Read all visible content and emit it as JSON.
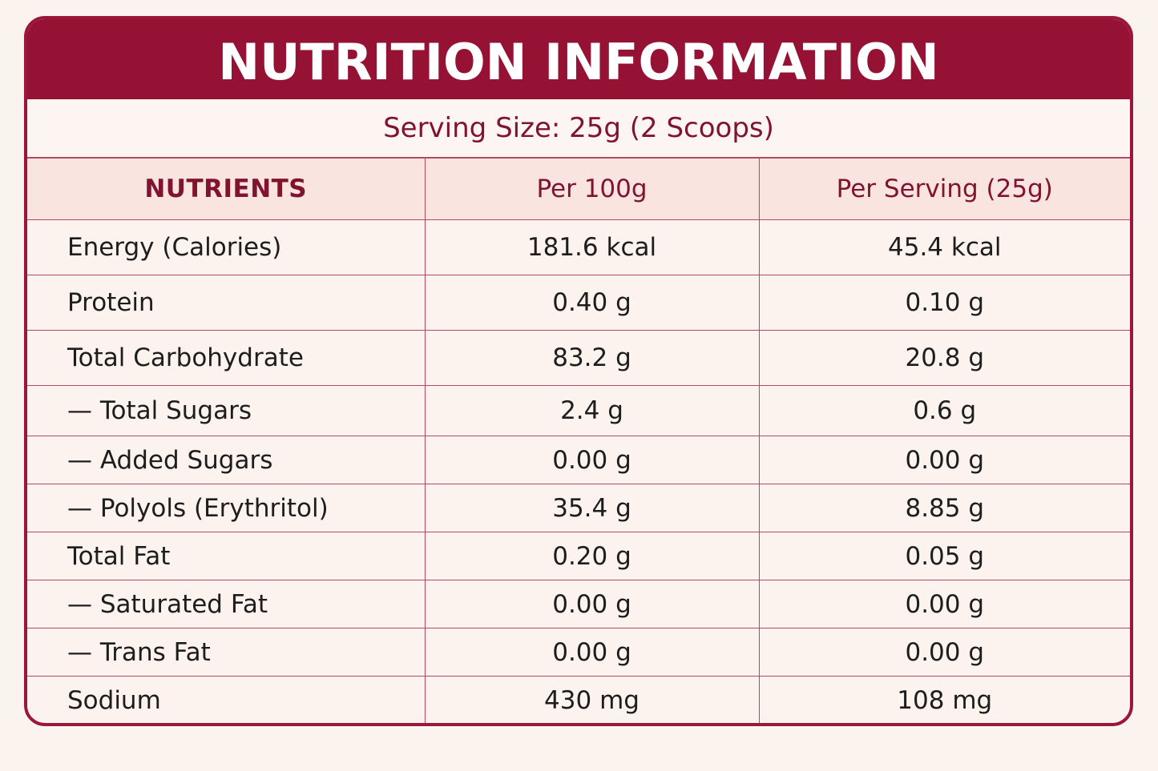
{
  "title": "NUTRITION INFORMATION",
  "serving_size": "Serving Size: 25g (2 Scoops)",
  "columns": [
    "NUTRIENTS",
    "Per 100g",
    "Per Serving (25g)"
  ],
  "rows": [
    {
      "nutrient": "Energy (Calories)",
      "per_100g": "181.6 kcal",
      "per_serving": "45.4 kcal"
    },
    {
      "nutrient": "Protein",
      "per_100g": "0.40 g",
      "per_serving": "0.10 g"
    },
    {
      "nutrient": "Total Carbohydrate",
      "per_100g": "83.2 g",
      "per_serving": "20.8 g"
    },
    {
      "nutrient": "— Total Sugars",
      "per_100g": "2.4 g",
      "per_serving": "0.6 g"
    },
    {
      "nutrient": "— Added Sugars",
      "per_100g": "0.00 g",
      "per_serving": "0.00 g"
    },
    {
      "nutrient": "— Polyols (Erythritol)",
      "per_100g": "35.4 g",
      "per_serving": "8.85 g"
    },
    {
      "nutrient": "Total Fat",
      "per_100g": "0.20 g",
      "per_serving": "0.05 g"
    },
    {
      "nutrient": "— Saturated Fat",
      "per_100g": "0.00 g",
      "per_serving": "0.00 g"
    },
    {
      "nutrient": "— Trans Fat",
      "per_100g": "0.00 g",
      "per_serving": "0.00 g"
    },
    {
      "nutrient": "Sodium",
      "per_100g": "430 mg",
      "per_serving": "108 mg"
    }
  ],
  "colors": {
    "accent": "#951234",
    "header_text": "#7f1330",
    "header_bg": "#fae4df",
    "background": "#fcf2ee"
  }
}
